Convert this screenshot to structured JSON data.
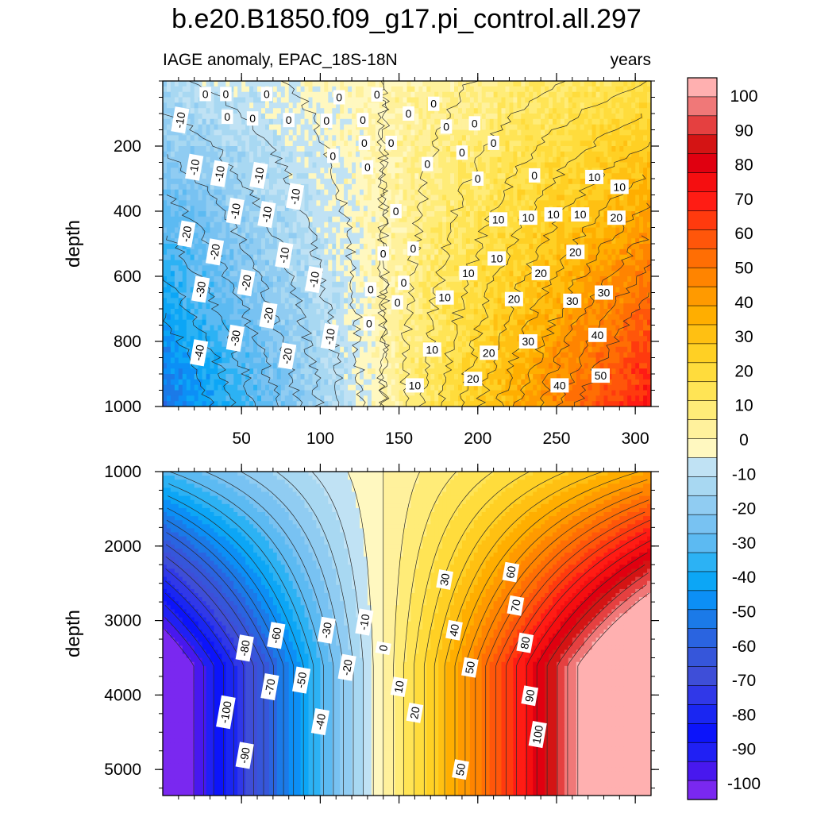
{
  "figure": {
    "title": "b.e20.B1850.f09_g17.pi_control.all.297",
    "subtitle_left": "IAGE anomaly, EPAC_18S-18N",
    "subtitle_right": "years"
  },
  "chart_data": [
    {
      "type": "heatmap",
      "panel": "upper",
      "xlabel": "",
      "ylabel": "depth",
      "xlim": [
        0,
        310
      ],
      "ylim": [
        1000,
        0
      ],
      "xticks": [
        50,
        100,
        150,
        200,
        250,
        300
      ],
      "yticks": [
        200,
        400,
        600,
        800,
        1000
      ],
      "contour_interval": 5,
      "contour_labels": [
        {
          "v": "0",
          "x": 27,
          "y": 40
        },
        {
          "v": "0",
          "x": 40,
          "y": 40
        },
        {
          "v": "0",
          "x": 66,
          "y": 40
        },
        {
          "v": "0",
          "x": 112,
          "y": 50
        },
        {
          "v": "0",
          "x": 136,
          "y": 42
        },
        {
          "v": "-10",
          "x": 11,
          "y": 120
        },
        {
          "v": "0",
          "x": 41,
          "y": 110
        },
        {
          "v": "0",
          "x": 57,
          "y": 115
        },
        {
          "v": "0",
          "x": 80,
          "y": 120
        },
        {
          "v": "0",
          "x": 104,
          "y": 122
        },
        {
          "v": "0",
          "x": 127,
          "y": 120
        },
        {
          "v": "0",
          "x": 156,
          "y": 100
        },
        {
          "v": "0",
          "x": 172,
          "y": 70
        },
        {
          "v": "0",
          "x": 180,
          "y": 140
        },
        {
          "v": "0",
          "x": 198,
          "y": 130
        },
        {
          "v": "0",
          "x": 128,
          "y": 190
        },
        {
          "v": "0",
          "x": 145,
          "y": 190
        },
        {
          "v": "0",
          "x": 108,
          "y": 230
        },
        {
          "v": "0",
          "x": 190,
          "y": 220
        },
        {
          "v": "0",
          "x": 210,
          "y": 190
        },
        {
          "v": "0",
          "x": 130,
          "y": 265
        },
        {
          "v": "0",
          "x": 168,
          "y": 255
        },
        {
          "v": "0",
          "x": 200,
          "y": 300
        },
        {
          "v": "0",
          "x": 236,
          "y": 290
        },
        {
          "v": "-10",
          "x": 20,
          "y": 265
        },
        {
          "v": "-10",
          "x": 36,
          "y": 285
        },
        {
          "v": "-10",
          "x": 61,
          "y": 290
        },
        {
          "v": "-10",
          "x": 84,
          "y": 355
        },
        {
          "v": "-10",
          "x": 46,
          "y": 400
        },
        {
          "v": "-10",
          "x": 66,
          "y": 410
        },
        {
          "v": "10",
          "x": 274,
          "y": 295
        },
        {
          "v": "10",
          "x": 290,
          "y": 325
        },
        {
          "v": "0",
          "x": 148,
          "y": 400
        },
        {
          "v": "10",
          "x": 213,
          "y": 425
        },
        {
          "v": "10",
          "x": 232,
          "y": 420
        },
        {
          "v": "10",
          "x": 248,
          "y": 410
        },
        {
          "v": "10",
          "x": 265,
          "y": 410
        },
        {
          "v": "20",
          "x": 288,
          "y": 420
        },
        {
          "v": "-20",
          "x": 15,
          "y": 470
        },
        {
          "v": "-20",
          "x": 33,
          "y": 525
        },
        {
          "v": "0",
          "x": 140,
          "y": 530
        },
        {
          "v": "0",
          "x": 159,
          "y": 515
        },
        {
          "v": "10",
          "x": 212,
          "y": 545
        },
        {
          "v": "20",
          "x": 262,
          "y": 525
        },
        {
          "v": "-10",
          "x": 77,
          "y": 535
        },
        {
          "v": "10",
          "x": 194,
          "y": 590
        },
        {
          "v": "20",
          "x": 240,
          "y": 590
        },
        {
          "v": "-30",
          "x": 24,
          "y": 640
        },
        {
          "v": "-20",
          "x": 53,
          "y": 620
        },
        {
          "v": "-10",
          "x": 96,
          "y": 610
        },
        {
          "v": "0",
          "x": 132,
          "y": 640
        },
        {
          "v": "0",
          "x": 153,
          "y": 620
        },
        {
          "v": "30",
          "x": 280,
          "y": 650
        },
        {
          "v": "0",
          "x": 149,
          "y": 680
        },
        {
          "v": "10",
          "x": 179,
          "y": 665
        },
        {
          "v": "20",
          "x": 223,
          "y": 670
        },
        {
          "v": "30",
          "x": 260,
          "y": 675
        },
        {
          "v": "-20",
          "x": 67,
          "y": 720
        },
        {
          "v": "0",
          "x": 131,
          "y": 745
        },
        {
          "v": "-30",
          "x": 46,
          "y": 790
        },
        {
          "v": "-10",
          "x": 106,
          "y": 785
        },
        {
          "v": "40",
          "x": 276,
          "y": 780
        },
        {
          "v": "30",
          "x": 232,
          "y": 800
        },
        {
          "v": "-40",
          "x": 23,
          "y": 835
        },
        {
          "v": "-20",
          "x": 79,
          "y": 845
        },
        {
          "v": "10",
          "x": 171,
          "y": 825
        },
        {
          "v": "20",
          "x": 207,
          "y": 835
        },
        {
          "v": "50",
          "x": 278,
          "y": 905
        },
        {
          "v": "20",
          "x": 197,
          "y": 915
        },
        {
          "v": "40",
          "x": 252,
          "y": 935
        },
        {
          "v": "10",
          "x": 160,
          "y": 935
        }
      ]
    },
    {
      "type": "heatmap",
      "panel": "lower",
      "xlabel": "",
      "ylabel": "depth",
      "xlim": [
        0,
        310
      ],
      "ylim": [
        5350,
        1000
      ],
      "xticks": [
        50,
        100,
        150,
        200,
        250,
        300
      ],
      "yticks": [
        1000,
        2000,
        3000,
        4000,
        5000
      ],
      "contour_interval": 5,
      "contour_labels": [
        {
          "v": "30",
          "x": 179,
          "y": 2450
        },
        {
          "v": "60",
          "x": 221,
          "y": 2350
        },
        {
          "v": "70",
          "x": 224,
          "y": 2800
        },
        {
          "v": "-60",
          "x": 72,
          "y": 3200
        },
        {
          "v": "-30",
          "x": 104,
          "y": 3130
        },
        {
          "v": "-10",
          "x": 128,
          "y": 3020
        },
        {
          "v": "40",
          "x": 185,
          "y": 3130
        },
        {
          "v": "80",
          "x": 230,
          "y": 3300
        },
        {
          "v": "-80",
          "x": 52,
          "y": 3370
        },
        {
          "v": "0",
          "x": 140,
          "y": 3370
        },
        {
          "v": "50",
          "x": 195,
          "y": 3630
        },
        {
          "v": "-20",
          "x": 117,
          "y": 3630
        },
        {
          "v": "-50",
          "x": 88,
          "y": 3800
        },
        {
          "v": "-70",
          "x": 68,
          "y": 3890
        },
        {
          "v": "10",
          "x": 150,
          "y": 3890
        },
        {
          "v": "90",
          "x": 233,
          "y": 4010
        },
        {
          "v": "-100",
          "x": 40,
          "y": 4230
        },
        {
          "v": "20",
          "x": 160,
          "y": 4240
        },
        {
          "v": "-40",
          "x": 100,
          "y": 4360
        },
        {
          "v": "100",
          "x": 238,
          "y": 4530
        },
        {
          "v": "-90",
          "x": 52,
          "y": 4810
        },
        {
          "v": "50",
          "x": 189,
          "y": 5000
        }
      ]
    }
  ],
  "colorbar": {
    "labels": [
      "100",
      "90",
      "80",
      "70",
      "60",
      "50",
      "40",
      "30",
      "20",
      "10",
      "0",
      "-10",
      "-20",
      "-30",
      "-40",
      "-50",
      "-60",
      "-70",
      "-80",
      "-90",
      "-100"
    ],
    "colors": [
      "#ffb0b0",
      "#f07878",
      "#e54040",
      "#d41414",
      "#e00010",
      "#f50e10",
      "#ff1c14",
      "#ff3a0e",
      "#ff560a",
      "#ff6e04",
      "#ff8400",
      "#ff9a00",
      "#ffae00",
      "#ffc012",
      "#ffd024",
      "#ffdc3c",
      "#ffe455",
      "#ffec78",
      "#fff19c",
      "#fff8c0",
      "#c0e2f4",
      "#a8d8f2",
      "#90ccf2",
      "#78c2f2",
      "#5cbaf2",
      "#2cb2f4",
      "#0ca6f6",
      "#0c8ff6",
      "#1b7ae8",
      "#2a64e0",
      "#3656da",
      "#3e4ed8",
      "#3038e8",
      "#1a26f2",
      "#0c14fa",
      "#2020f4",
      "#4818ee",
      "#7a28f0"
    ]
  },
  "colors": {
    "frame": "#000000",
    "contour_line": "#2a2a2a"
  }
}
